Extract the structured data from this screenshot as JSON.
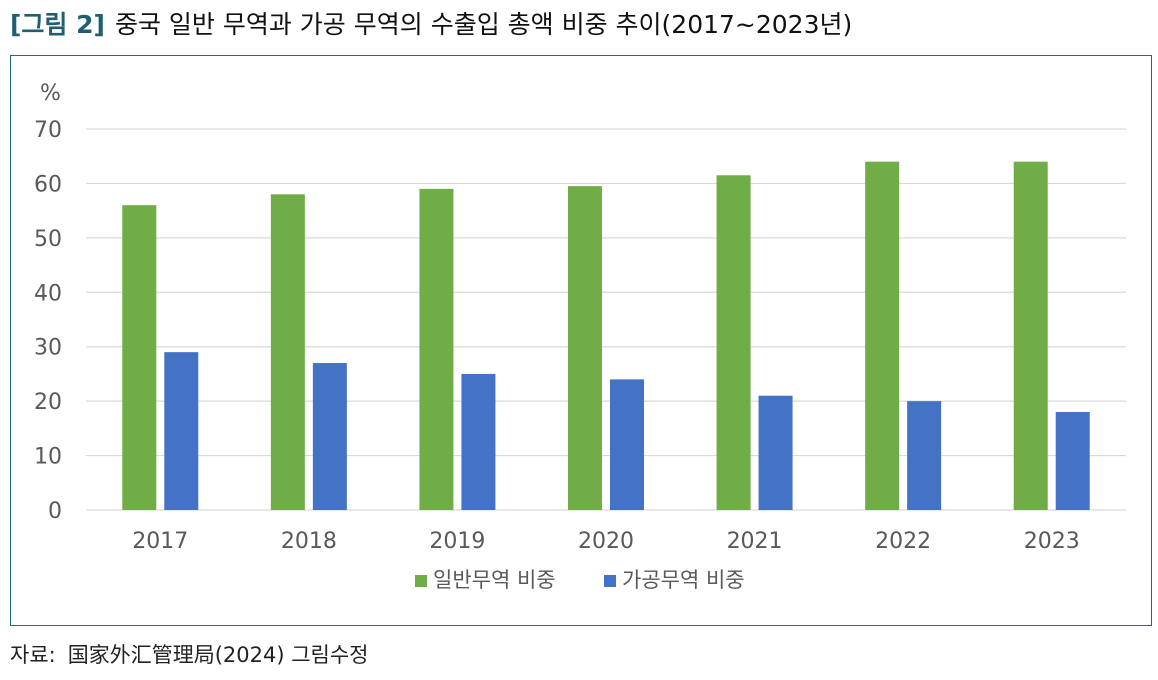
{
  "figure": {
    "label": "[그림 2]",
    "title": "중국 일반 무역과 가공 무역의 수출입 총액 비중 추이(2017~2023년)"
  },
  "source": {
    "label": "자료:",
    "text": "国家外汇管理局(2024) 그림수정"
  },
  "colors": {
    "general_trade": "#70ad47",
    "processing_trade": "#4472c4",
    "frame": "#1f6f7a",
    "grid": "#d9d9d9",
    "title_label": "#1f5f70"
  },
  "chart_data": {
    "type": "bar",
    "title": "",
    "xlabel": "",
    "ylabel": "%",
    "ylim": [
      0,
      70
    ],
    "yticks": [
      0,
      10,
      20,
      30,
      40,
      50,
      60,
      70
    ],
    "grid": true,
    "legend_position": "bottom",
    "categories": [
      "2017",
      "2018",
      "2019",
      "2020",
      "2021",
      "2022",
      "2023"
    ],
    "series": [
      {
        "name": "일반무역 비중",
        "values": [
          56,
          58,
          59,
          59.5,
          61.5,
          64,
          64
        ]
      },
      {
        "name": "가공무역 비중",
        "values": [
          29,
          27,
          25,
          24,
          21,
          20,
          18
        ]
      }
    ]
  }
}
